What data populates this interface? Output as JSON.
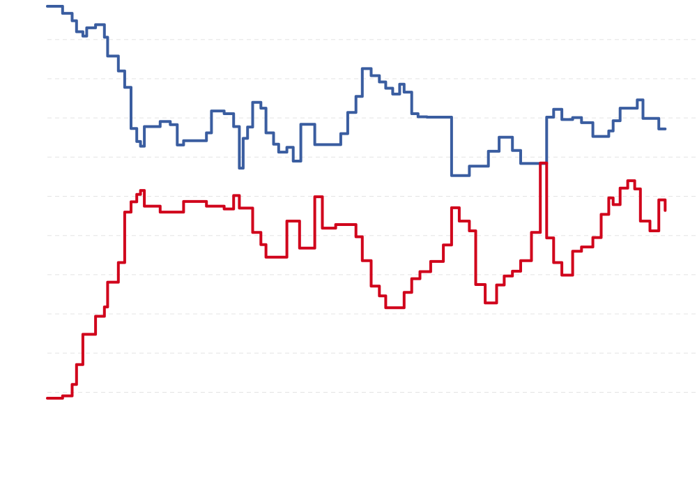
{
  "chart_data": {
    "type": "line",
    "title": "",
    "xlabel": "",
    "ylabel": "",
    "grid": true,
    "ylim": [
      0,
      100
    ],
    "xlim": [
      0,
      100
    ],
    "series": [
      {
        "color": "#3a5da0",
        "points": [
          [
            0,
            100
          ],
          [
            2.4,
            100
          ],
          [
            2.4,
            98.2
          ],
          [
            3.9,
            98.2
          ],
          [
            3.9,
            96.3
          ],
          [
            4.6,
            96.3
          ],
          [
            4.6,
            93.5
          ],
          [
            5.6,
            93.5
          ],
          [
            5.6,
            92.4
          ],
          [
            6.2,
            92.4
          ],
          [
            6.2,
            94.5
          ],
          [
            7.6,
            94.5
          ],
          [
            7.6,
            95.3
          ],
          [
            9.0,
            95.3
          ],
          [
            9.0,
            92.1
          ],
          [
            9.5,
            92.1
          ],
          [
            9.5,
            87.3
          ],
          [
            11.2,
            87.3
          ],
          [
            11.2,
            83.5
          ],
          [
            12.2,
            83.5
          ],
          [
            12.2,
            79.3
          ],
          [
            13.2,
            79.3
          ],
          [
            13.2,
            68.8
          ],
          [
            14.1,
            68.8
          ],
          [
            14.1,
            65.5
          ],
          [
            14.7,
            65.5
          ],
          [
            14.7,
            64.3
          ],
          [
            15.3,
            64.3
          ],
          [
            15.3,
            69.3
          ],
          [
            17.8,
            69.3
          ],
          [
            17.8,
            70.6
          ],
          [
            19.4,
            70.6
          ],
          [
            19.4,
            69.8
          ],
          [
            20.5,
            69.8
          ],
          [
            20.5,
            64.6
          ],
          [
            21.5,
            64.6
          ],
          [
            21.5,
            65.7
          ],
          [
            25.1,
            65.7
          ],
          [
            25.1,
            67.7
          ],
          [
            25.9,
            67.7
          ],
          [
            25.9,
            73.3
          ],
          [
            27.9,
            73.3
          ],
          [
            27.9,
            72.6
          ],
          [
            29.4,
            72.6
          ],
          [
            29.4,
            69.3
          ],
          [
            30.3,
            69.3
          ],
          [
            30.3,
            58.7
          ],
          [
            30.9,
            58.7
          ],
          [
            30.9,
            66.3
          ],
          [
            31.6,
            66.3
          ],
          [
            31.6,
            69.2
          ],
          [
            32.4,
            69.2
          ],
          [
            32.4,
            75.5
          ],
          [
            33.7,
            75.5
          ],
          [
            33.7,
            74.0
          ],
          [
            34.5,
            74.0
          ],
          [
            34.5,
            67.7
          ],
          [
            35.7,
            67.7
          ],
          [
            35.7,
            64.8
          ],
          [
            36.5,
            64.8
          ],
          [
            36.5,
            62.8
          ],
          [
            37.8,
            62.8
          ],
          [
            37.8,
            64.0
          ],
          [
            38.8,
            64.0
          ],
          [
            38.8,
            60.5
          ],
          [
            40.0,
            60.5
          ],
          [
            40.0,
            69.9
          ],
          [
            42.2,
            69.9
          ],
          [
            42.2,
            64.7
          ],
          [
            46.3,
            64.7
          ],
          [
            46.3,
            67.5
          ],
          [
            47.4,
            67.5
          ],
          [
            47.4,
            72.9
          ],
          [
            48.7,
            72.9
          ],
          [
            48.7,
            77.0
          ],
          [
            49.7,
            77.0
          ],
          [
            49.7,
            84.1
          ],
          [
            51.1,
            84.1
          ],
          [
            51.1,
            82.3
          ],
          [
            52.4,
            82.3
          ],
          [
            52.4,
            80.7
          ],
          [
            53.4,
            80.7
          ],
          [
            53.4,
            79.1
          ],
          [
            54.5,
            79.1
          ],
          [
            54.5,
            77.6
          ],
          [
            55.6,
            77.6
          ],
          [
            55.6,
            80.1
          ],
          [
            56.3,
            80.1
          ],
          [
            56.3,
            78.1
          ],
          [
            57.5,
            78.1
          ],
          [
            57.5,
            72.6
          ],
          [
            58.5,
            72.6
          ],
          [
            58.5,
            71.8
          ],
          [
            59.9,
            71.8
          ],
          [
            59.9,
            71.7
          ],
          [
            63.8,
            71.7
          ],
          [
            63.8,
            56.8
          ],
          [
            66.6,
            56.8
          ],
          [
            66.6,
            59.2
          ],
          [
            69.6,
            59.2
          ],
          [
            69.6,
            63.0
          ],
          [
            71.3,
            63.0
          ],
          [
            71.3,
            66.6
          ],
          [
            73.4,
            66.6
          ],
          [
            73.4,
            63.2
          ],
          [
            74.7,
            63.2
          ],
          [
            74.7,
            59.9
          ],
          [
            78.8,
            59.9
          ],
          [
            78.8,
            71.7
          ],
          [
            79.9,
            71.7
          ],
          [
            79.9,
            73.7
          ],
          [
            81.2,
            73.7
          ],
          [
            81.2,
            71.1
          ],
          [
            82.9,
            71.1
          ],
          [
            82.9,
            71.6
          ],
          [
            84.3,
            71.6
          ],
          [
            84.3,
            70.3
          ],
          [
            86.1,
            70.3
          ],
          [
            86.1,
            66.8
          ],
          [
            88.6,
            66.8
          ],
          [
            88.6,
            68.2
          ],
          [
            89.3,
            68.2
          ],
          [
            89.3,
            70.8
          ],
          [
            90.4,
            70.8
          ],
          [
            90.4,
            74.0
          ],
          [
            93.1,
            74.0
          ],
          [
            93.1,
            76.1
          ],
          [
            94.0,
            76.1
          ],
          [
            94.0,
            71.4
          ],
          [
            96.5,
            71.4
          ],
          [
            96.5,
            68.7
          ],
          [
            97.5,
            68.7
          ]
        ]
      },
      {
        "color": "#d0021b",
        "points": [
          [
            0,
            0
          ],
          [
            2.4,
            0
          ],
          [
            2.4,
            0.6
          ],
          [
            3.9,
            0.6
          ],
          [
            3.9,
            3.5
          ],
          [
            4.6,
            3.5
          ],
          [
            4.6,
            8.6
          ],
          [
            5.6,
            8.6
          ],
          [
            5.6,
            16.3
          ],
          [
            7.6,
            16.3
          ],
          [
            7.6,
            20.9
          ],
          [
            9.0,
            20.9
          ],
          [
            9.0,
            23.3
          ],
          [
            9.5,
            23.3
          ],
          [
            9.5,
            29.6
          ],
          [
            11.2,
            29.6
          ],
          [
            11.2,
            34.6
          ],
          [
            12.2,
            34.6
          ],
          [
            12.2,
            47.5
          ],
          [
            13.2,
            47.5
          ],
          [
            13.2,
            50.1
          ],
          [
            14.1,
            50.1
          ],
          [
            14.1,
            52.0
          ],
          [
            14.7,
            52.0
          ],
          [
            14.7,
            53.0
          ],
          [
            15.3,
            53.0
          ],
          [
            15.3,
            49.0
          ],
          [
            17.8,
            49.0
          ],
          [
            17.8,
            47.5
          ],
          [
            21.5,
            47.5
          ],
          [
            21.5,
            50.2
          ],
          [
            25.1,
            50.2
          ],
          [
            25.1,
            49.0
          ],
          [
            27.9,
            49.0
          ],
          [
            27.9,
            48.3
          ],
          [
            29.4,
            48.3
          ],
          [
            29.4,
            51.7
          ],
          [
            30.3,
            51.7
          ],
          [
            30.3,
            48.5
          ],
          [
            32.4,
            48.5
          ],
          [
            32.4,
            42.3
          ],
          [
            33.7,
            42.3
          ],
          [
            33.7,
            39.2
          ],
          [
            34.5,
            39.2
          ],
          [
            34.5,
            36.0
          ],
          [
            37.8,
            36.0
          ],
          [
            37.8,
            45.2
          ],
          [
            39.8,
            45.2
          ],
          [
            39.8,
            38.3
          ],
          [
            42.2,
            38.3
          ],
          [
            42.2,
            51.4
          ],
          [
            43.4,
            51.4
          ],
          [
            43.4,
            43.4
          ],
          [
            45.5,
            43.4
          ],
          [
            45.5,
            44.3
          ],
          [
            48.7,
            44.3
          ],
          [
            48.7,
            41.2
          ],
          [
            49.7,
            41.2
          ],
          [
            49.7,
            35.1
          ],
          [
            51.1,
            35.1
          ],
          [
            51.1,
            28.6
          ],
          [
            52.4,
            28.6
          ],
          [
            52.4,
            26.1
          ],
          [
            53.4,
            26.1
          ],
          [
            53.4,
            23.1
          ],
          [
            56.3,
            23.1
          ],
          [
            56.3,
            27.0
          ],
          [
            57.5,
            27.0
          ],
          [
            57.5,
            30.5
          ],
          [
            58.8,
            30.5
          ],
          [
            58.8,
            32.3
          ],
          [
            60.5,
            32.3
          ],
          [
            60.5,
            34.9
          ],
          [
            62.5,
            34.9
          ],
          [
            62.5,
            39.1
          ],
          [
            63.8,
            39.1
          ],
          [
            63.8,
            48.6
          ],
          [
            65.0,
            48.6
          ],
          [
            65.0,
            45.2
          ],
          [
            66.6,
            45.2
          ],
          [
            66.6,
            42.7
          ],
          [
            67.6,
            42.7
          ],
          [
            67.6,
            29.0
          ],
          [
            69.1,
            29.0
          ],
          [
            69.1,
            24.3
          ],
          [
            70.9,
            24.3
          ],
          [
            70.9,
            28.9
          ],
          [
            72.1,
            28.9
          ],
          [
            72.1,
            31.2
          ],
          [
            73.4,
            31.2
          ],
          [
            73.4,
            32.4
          ],
          [
            74.7,
            32.4
          ],
          [
            74.7,
            35.1
          ],
          [
            76.4,
            35.1
          ],
          [
            76.4,
            42.3
          ],
          [
            77.8,
            42.3
          ],
          [
            77.8,
            60.0
          ],
          [
            78.8,
            60.0
          ],
          [
            78.8,
            40.9
          ],
          [
            79.9,
            40.9
          ],
          [
            79.9,
            34.6
          ],
          [
            81.2,
            34.6
          ],
          [
            81.2,
            31.4
          ],
          [
            82.9,
            31.4
          ],
          [
            82.9,
            37.5
          ],
          [
            84.3,
            37.5
          ],
          [
            84.3,
            38.6
          ],
          [
            86.1,
            38.6
          ],
          [
            86.1,
            41.0
          ],
          [
            87.4,
            41.0
          ],
          [
            87.4,
            46.9
          ],
          [
            88.6,
            46.9
          ],
          [
            88.6,
            51.1
          ],
          [
            89.3,
            51.1
          ],
          [
            89.3,
            49.4
          ],
          [
            90.4,
            49.4
          ],
          [
            90.4,
            53.6
          ],
          [
            91.6,
            53.6
          ],
          [
            91.6,
            55.5
          ],
          [
            92.7,
            55.5
          ],
          [
            92.7,
            53.4
          ],
          [
            93.6,
            53.4
          ],
          [
            93.6,
            45.2
          ],
          [
            95.1,
            45.2
          ],
          [
            95.1,
            42.7
          ],
          [
            96.5,
            42.7
          ],
          [
            96.5,
            50.6
          ],
          [
            97.5,
            50.6
          ],
          [
            97.5,
            47.9
          ]
        ]
      }
    ]
  }
}
